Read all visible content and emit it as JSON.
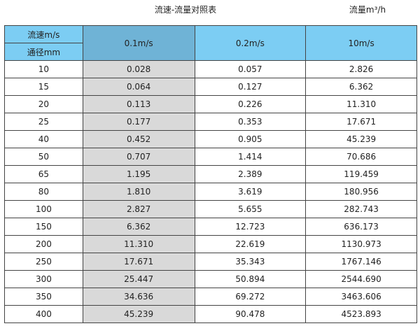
{
  "title": "流速-流量对照表",
  "unit_label": "流量m³/h",
  "header": {
    "velocity_label": "流速m/s",
    "diameter_label": "通径mm",
    "columns": [
      "0.1m/s",
      "0.2m/s",
      "10m/s"
    ]
  },
  "colors": {
    "header": "#7ccdf3",
    "highlight_header": "#6fb3d6",
    "highlight_column": "#d9d9d9"
  },
  "rows": [
    [
      "10",
      "0.028",
      "0.057",
      "2.826"
    ],
    [
      "15",
      "0.064",
      "0.127",
      "6.362"
    ],
    [
      "20",
      "0.113",
      "0.226",
      "11.310"
    ],
    [
      "25",
      "0.177",
      "0.353",
      "17.671"
    ],
    [
      "40",
      "0.452",
      "0.905",
      "45.239"
    ],
    [
      "50",
      "0.707",
      "1.414",
      "70.686"
    ],
    [
      "65",
      "1.195",
      "2.389",
      "119.459"
    ],
    [
      "80",
      "1.810",
      "3.619",
      "180.956"
    ],
    [
      "100",
      "2.827",
      "5.655",
      "282.743"
    ],
    [
      "150",
      "6.362",
      "12.723",
      "636.173"
    ],
    [
      "200",
      "11.310",
      "22.619",
      "1130.973"
    ],
    [
      "250",
      "17.671",
      "35.343",
      "1767.146"
    ],
    [
      "300",
      "25.447",
      "50.894",
      "2544.690"
    ],
    [
      "350",
      "34.636",
      "69.272",
      "3463.606"
    ],
    [
      "400",
      "45.239",
      "90.478",
      "4523.893"
    ]
  ]
}
